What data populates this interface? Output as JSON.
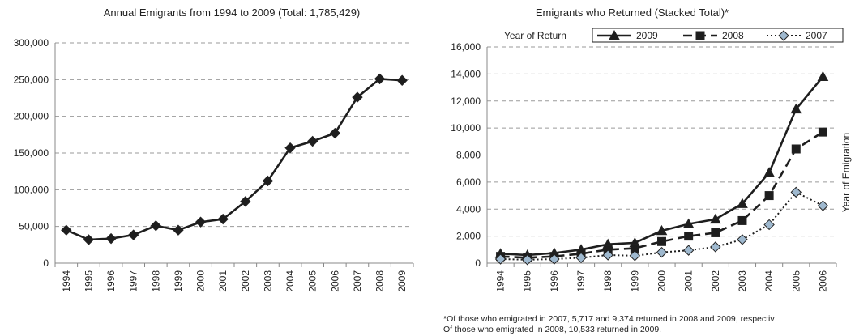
{
  "chart_data": [
    {
      "type": "line",
      "title": "Annual Emigrants from 1994 to 2009 (Total: 1,785,429)",
      "xlabel": "",
      "ylabel": "",
      "x": [
        "1994",
        "1995",
        "1996",
        "1997",
        "1998",
        "1999",
        "2000",
        "2001",
        "2002",
        "2003",
        "2004",
        "2005",
        "2006",
        "2007",
        "2008",
        "2009"
      ],
      "series": [
        {
          "values": [
            45000,
            32000,
            33500,
            38500,
            51000,
            45000,
            56000,
            60000,
            84000,
            112000,
            157000,
            166000,
            177000,
            226000,
            251000,
            249000
          ]
        }
      ],
      "ylim": [
        0,
        300000
      ],
      "yticks": [
        0,
        50000,
        100000,
        150000,
        200000,
        250000,
        300000
      ],
      "ytick_labels": [
        "0",
        "50,000",
        "100,000",
        "150,000",
        "200,000",
        "250,000",
        "300,000"
      ],
      "grid": "horizontal dashed",
      "color": "#222222"
    },
    {
      "type": "line",
      "title": "Emigrants who Returned (Stacked Total)*",
      "xlabel": "",
      "ylabel": "Year of Emigration",
      "legend_title": "Year of Return",
      "legend_position": "top",
      "x": [
        "1994",
        "1995",
        "1996",
        "1997",
        "1998",
        "1999",
        "2000",
        "2001",
        "2002",
        "2003",
        "2004",
        "2005",
        "2006"
      ],
      "series": [
        {
          "name": "2009",
          "style": "solid",
          "marker": "triangle",
          "values": [
            700,
            600,
            750,
            1000,
            1400,
            1500,
            2400,
            2900,
            3250,
            4400,
            6700,
            11400,
            13800
          ]
        },
        {
          "name": "2008",
          "style": "dashed",
          "marker": "square",
          "values": [
            500,
            400,
            500,
            700,
            1000,
            1100,
            1600,
            2000,
            2250,
            3150,
            5000,
            8450,
            9700
          ]
        },
        {
          "name": "2007",
          "style": "dotted",
          "marker": "diamond",
          "values": [
            300,
            250,
            300,
            400,
            600,
            550,
            800,
            950,
            1200,
            1750,
            2850,
            5250,
            4250
          ]
        }
      ],
      "ylim": [
        0,
        16000
      ],
      "yticks": [
        0,
        2000,
        4000,
        6000,
        8000,
        10000,
        12000,
        14000,
        16000
      ],
      "ytick_labels": [
        "0",
        "2,000",
        "4,000",
        "6,000",
        "8,000",
        "10,000",
        "12,000",
        "14,000",
        "16,000"
      ],
      "grid": "horizontal dashed",
      "footnote": [
        "*Of those who emigrated in 2007, 5,717 and 9,374  returned in 2008 and 2009, respectiv",
        "Of those who emigrated in 2008, 10,533 returned in 2009."
      ]
    }
  ]
}
